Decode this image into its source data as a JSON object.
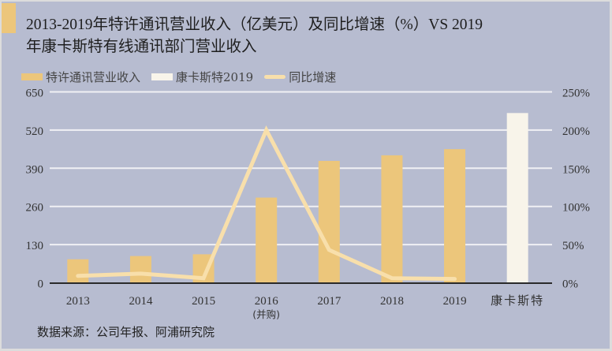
{
  "header": {
    "title_line1": "2013-2019年特许通讯营业收入（亿美元）及同比增速（%）VS 2019",
    "title_line2": "年康卡斯特有线通讯部门营业收入"
  },
  "legend": [
    {
      "label": "特许通讯营业收入",
      "color": "#ecc67b",
      "type": "bar"
    },
    {
      "label": "康卡斯特2019",
      "color": "#f8f4ea",
      "type": "bar"
    },
    {
      "label": "同比增速",
      "color": "#f8dfab",
      "type": "line"
    }
  ],
  "footer": {
    "source": "数据来源：公司年报、阿浦研究院"
  },
  "colors": {
    "background": "#b7bcd0",
    "bar_charter": "#ecc67b",
    "bar_comcast": "#f8f4ea",
    "line_growth": "#f8dfab",
    "gridline": "#f0f0f4",
    "axis": "#2a2a2a"
  },
  "chart_data": {
    "type": "bar",
    "title": "2013-2019年特许通讯营业收入（亿美元）及同比增速（%）VS 2019年康卡斯特有线通讯部门营业收入",
    "categories": [
      "2013",
      "2014",
      "2015",
      "2016",
      "2017",
      "2018",
      "2019",
      "康卡斯特"
    ],
    "category_sublabels": [
      "",
      "",
      "",
      "(并购)",
      "",
      "",
      "",
      ""
    ],
    "series": [
      {
        "name": "特许通讯营业收入",
        "type": "bar",
        "axis": "left",
        "values": [
          80,
          91,
          97,
          290,
          415,
          434,
          455,
          null
        ]
      },
      {
        "name": "康卡斯特2019",
        "type": "bar",
        "axis": "left",
        "values": [
          null,
          null,
          null,
          null,
          null,
          null,
          null,
          578
        ]
      },
      {
        "name": "同比增速",
        "type": "line",
        "axis": "right",
        "unit": "%",
        "values": [
          9,
          12,
          6,
          200,
          43,
          6,
          5,
          null
        ]
      }
    ],
    "left_axis": {
      "min": 0,
      "max": 650,
      "ticks": [
        "0",
        "130",
        "260",
        "390",
        "520",
        "650"
      ]
    },
    "right_axis": {
      "min": 0,
      "max": 250,
      "ticks": [
        "0%",
        "50%",
        "100%",
        "150%",
        "200%",
        "250%"
      ]
    },
    "xlabel": "",
    "ylabel": "",
    "grid": true,
    "legend_position": "top"
  }
}
